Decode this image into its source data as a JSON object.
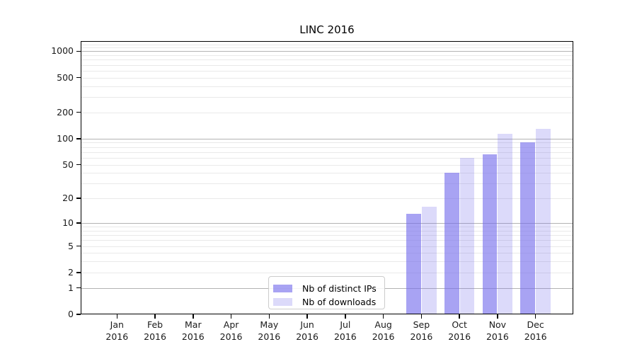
{
  "chart_data": {
    "type": "bar",
    "title": "LINC 2016",
    "categories": [
      "Jan",
      "Feb",
      "Mar",
      "Apr",
      "May",
      "Jun",
      "Jul",
      "Aug",
      "Sep",
      "Oct",
      "Nov",
      "Dec"
    ],
    "year": "2016",
    "series": [
      {
        "name": "Nb of distinct IPs",
        "key": "ips",
        "color": "rgba(114,107,235,0.62)",
        "values": [
          0,
          0,
          0,
          0,
          0,
          0,
          0,
          0,
          13,
          40,
          66,
          91
        ]
      },
      {
        "name": "Nb of downloads",
        "key": "downloads",
        "color": "rgba(114,107,235,0.25)",
        "values": [
          0,
          0,
          0,
          0,
          0,
          0,
          0,
          0,
          16,
          60,
          113,
          130
        ]
      }
    ],
    "yscale": "log10(1+v)",
    "ylim": [
      0,
      1320
    ],
    "yticks": [
      0,
      1,
      2,
      5,
      10,
      20,
      50,
      100,
      200,
      500,
      1000
    ],
    "grid_major": [
      1,
      10,
      100,
      1000
    ],
    "grid_minor": [
      2,
      3,
      4,
      5,
      6,
      7,
      8,
      9,
      20,
      30,
      40,
      50,
      60,
      70,
      80,
      90,
      200,
      300,
      400,
      500,
      600,
      700,
      800,
      900,
      1100,
      1200
    ],
    "grid": "on",
    "legend_position": "lower center",
    "colors": {
      "grid_major": "#b3b3b3",
      "grid_minor": "#e9e9e9",
      "axis": "#000000",
      "tick_text": "#1a1a1a"
    }
  }
}
